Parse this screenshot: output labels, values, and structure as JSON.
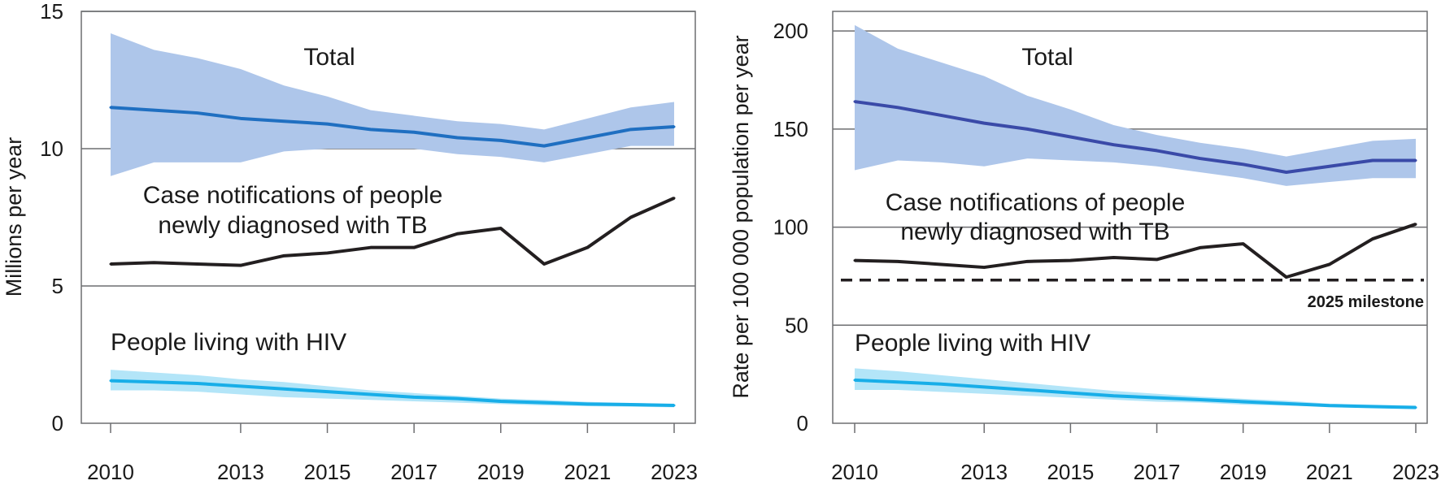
{
  "chart_data": [
    {
      "type": "line",
      "ylabel": "Millions per year",
      "ylim": [
        0,
        15
      ],
      "yticks": [
        0,
        5,
        10,
        15
      ],
      "xlim": [
        2010,
        2023
      ],
      "xticks": [
        2010,
        2013,
        2015,
        2017,
        2019,
        2021,
        2023
      ],
      "grid": "horizontal",
      "x": [
        2010,
        2011,
        2012,
        2013,
        2014,
        2015,
        2016,
        2017,
        2018,
        2019,
        2020,
        2021,
        2022,
        2023
      ],
      "series": [
        {
          "name": "Total",
          "label_lines": [
            "Total"
          ],
          "color": "#1f6fc1",
          "band_color": "#aec6ea",
          "values": [
            11.5,
            11.4,
            11.3,
            11.1,
            11.0,
            10.9,
            10.7,
            10.6,
            10.4,
            10.3,
            10.1,
            10.4,
            10.7,
            10.8
          ],
          "lower": [
            9.0,
            9.5,
            9.5,
            9.5,
            9.9,
            10.0,
            10.0,
            10.0,
            9.8,
            9.7,
            9.5,
            9.8,
            10.1,
            10.1
          ],
          "upper": [
            14.2,
            13.6,
            13.3,
            12.9,
            12.3,
            11.9,
            11.4,
            11.2,
            11.0,
            10.9,
            10.7,
            11.1,
            11.5,
            11.7
          ]
        },
        {
          "name": "Case notifications of people newly diagnosed with TB",
          "label_lines": [
            "Case notifications of people",
            "newly diagnosed with TB"
          ],
          "color": "#231f20",
          "values": [
            5.8,
            5.85,
            5.8,
            5.75,
            6.1,
            6.2,
            6.4,
            6.4,
            6.9,
            7.1,
            5.8,
            6.4,
            7.5,
            8.2
          ]
        },
        {
          "name": "People living with HIV",
          "label_lines": [
            "People living with HIV"
          ],
          "color": "#18aee8",
          "band_color": "#b3e5f8",
          "values": [
            1.55,
            1.5,
            1.45,
            1.35,
            1.25,
            1.15,
            1.05,
            0.95,
            0.9,
            0.8,
            0.75,
            0.7,
            0.68,
            0.65
          ],
          "lower": [
            1.2,
            1.2,
            1.15,
            1.05,
            0.95,
            0.9,
            0.85,
            0.8,
            0.75,
            0.7,
            0.65,
            0.62,
            0.6,
            0.58
          ],
          "upper": [
            1.95,
            1.85,
            1.75,
            1.6,
            1.5,
            1.35,
            1.2,
            1.1,
            1.0,
            0.9,
            0.85,
            0.78,
            0.74,
            0.7
          ]
        }
      ]
    },
    {
      "type": "line",
      "ylabel": "Rate per 100 000 population per year",
      "ylim": [
        0,
        210
      ],
      "yticks": [
        0,
        50,
        100,
        150,
        200
      ],
      "xlim": [
        2010,
        2023
      ],
      "xticks": [
        2010,
        2013,
        2015,
        2017,
        2019,
        2021,
        2023
      ],
      "grid": "horizontal",
      "x": [
        2010,
        2011,
        2012,
        2013,
        2014,
        2015,
        2016,
        2017,
        2018,
        2019,
        2020,
        2021,
        2022,
        2023
      ],
      "series": [
        {
          "name": "Total",
          "label_lines": [
            "Total"
          ],
          "color": "#3a4aa8",
          "band_color": "#aec6ea",
          "values": [
            164,
            161,
            157,
            153,
            150,
            146,
            142,
            139,
            135,
            132,
            128,
            131,
            134,
            134
          ],
          "lower": [
            129,
            134,
            133,
            131,
            135,
            134,
            133,
            131,
            128,
            125,
            121,
            123,
            125,
            125
          ],
          "upper": [
            203,
            191,
            184,
            177,
            167,
            160,
            152,
            147,
            143,
            140,
            136,
            140,
            144,
            145
          ]
        },
        {
          "name": "Case notifications of people newly diagnosed with TB",
          "label_lines": [
            "Case notifications of people",
            "newly diagnosed with TB"
          ],
          "color": "#231f20",
          "values": [
            83,
            82.5,
            81,
            79.5,
            82.5,
            83,
            84.5,
            83.5,
            89.5,
            91.5,
            74.5,
            81,
            94,
            101.5
          ]
        },
        {
          "name": "People living with HIV",
          "label_lines": [
            "People living with HIV"
          ],
          "color": "#18aee8",
          "band_color": "#b3e5f8",
          "values": [
            22,
            21,
            20,
            18.5,
            17,
            15.5,
            14,
            13,
            12,
            11,
            10,
            9,
            8.5,
            8
          ],
          "lower": [
            17,
            17,
            16,
            15,
            14,
            13,
            12,
            11,
            10.5,
            9.5,
            9,
            8.5,
            8,
            7.5
          ],
          "upper": [
            28,
            26.5,
            24.5,
            22.5,
            20.5,
            18.5,
            16.5,
            15,
            13.5,
            12.5,
            11.5,
            10,
            9.5,
            9
          ]
        }
      ],
      "milestone": {
        "label": "2025 milestone",
        "value": 73
      }
    }
  ]
}
